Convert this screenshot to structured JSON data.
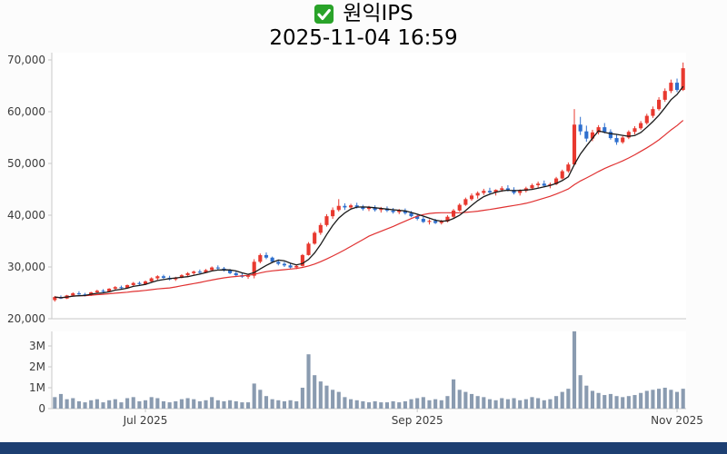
{
  "header": {
    "title": "원익IPS",
    "datetime": "2025-11-04 16:59"
  },
  "colors": {
    "up": "#e8392f",
    "down": "#2e6fce",
    "ma_fast": "#1a1a1a",
    "ma_slow": "#e03131",
    "volume": "#8a9bb0",
    "checkbox": "#29a329",
    "bottom_bar": "#1d3f72",
    "axis": "#c9c9c9",
    "label": "#3c3c3c"
  },
  "chart_data": {
    "type": "candlestick",
    "title": "원익IPS",
    "timestamp_label": "2025-11-04 16:59",
    "legend_position": "none",
    "grid": false,
    "price_axis": {
      "ticks": [
        {
          "label": "70,000",
          "value": 70000
        },
        {
          "label": "60,000",
          "value": 60000
        },
        {
          "label": "50,000",
          "value": 50000
        },
        {
          "label": "40,000",
          "value": 40000
        },
        {
          "label": "30,000",
          "value": 30000
        },
        {
          "label": "20,000",
          "value": 20000
        }
      ],
      "ylim": [
        20000,
        72000
      ]
    },
    "volume_axis": {
      "ticks": [
        {
          "label": "3M",
          "value": 3
        },
        {
          "label": "2M",
          "value": 2
        },
        {
          "label": "1M",
          "value": 1
        },
        {
          "label": "0",
          "value": 0
        }
      ],
      "unit": "millions of shares",
      "ylim": [
        0,
        3.8
      ]
    },
    "x_ticks": [
      {
        "label": "Jul 2025",
        "index": 15
      },
      {
        "label": "Sep 2025",
        "index": 60
      },
      {
        "label": "Nov 2025",
        "index": 103
      }
    ],
    "ma_windows": {
      "fast": 5,
      "slow": 20
    },
    "candle_format": [
      "open",
      "high",
      "low",
      "close",
      "volume_millions"
    ],
    "candles": [
      [
        23600,
        24400,
        23300,
        24200,
        0.55
      ],
      [
        24200,
        24500,
        23800,
        23900,
        0.7
      ],
      [
        23900,
        24600,
        23800,
        24500,
        0.45
      ],
      [
        24500,
        25100,
        24300,
        24900,
        0.5
      ],
      [
        24900,
        25300,
        24600,
        24700,
        0.35
      ],
      [
        24700,
        25000,
        24300,
        24500,
        0.3
      ],
      [
        24500,
        25200,
        24400,
        25100,
        0.4
      ],
      [
        25100,
        25600,
        24900,
        25400,
        0.45
      ],
      [
        25400,
        25700,
        25000,
        25200,
        0.3
      ],
      [
        25200,
        25900,
        25100,
        25800,
        0.4
      ],
      [
        25800,
        26300,
        25600,
        26100,
        0.45
      ],
      [
        26100,
        26400,
        25700,
        25900,
        0.3
      ],
      [
        25900,
        26600,
        25800,
        26500,
        0.5
      ],
      [
        26500,
        27100,
        26300,
        26900,
        0.55
      ],
      [
        26900,
        27200,
        26500,
        26700,
        0.35
      ],
      [
        26700,
        27400,
        26500,
        27200,
        0.4
      ],
      [
        27200,
        28000,
        27100,
        27800,
        0.55
      ],
      [
        27800,
        28400,
        27500,
        28200,
        0.5
      ],
      [
        28200,
        28500,
        27700,
        27900,
        0.35
      ],
      [
        27900,
        28300,
        27400,
        27600,
        0.3
      ],
      [
        27600,
        28100,
        27300,
        27900,
        0.35
      ],
      [
        27900,
        28600,
        27800,
        28400,
        0.45
      ],
      [
        28400,
        29000,
        28200,
        28800,
        0.5
      ],
      [
        28800,
        29300,
        28500,
        29100,
        0.45
      ],
      [
        29100,
        29500,
        28700,
        28900,
        0.35
      ],
      [
        28900,
        29600,
        28800,
        29400,
        0.4
      ],
      [
        29400,
        30100,
        29300,
        29900,
        0.55
      ],
      [
        29900,
        30300,
        29500,
        29700,
        0.4
      ],
      [
        29700,
        30000,
        29100,
        29300,
        0.35
      ],
      [
        29300,
        29600,
        28600,
        28800,
        0.4
      ],
      [
        28800,
        29100,
        28200,
        28400,
        0.35
      ],
      [
        28400,
        28800,
        27900,
        28100,
        0.3
      ],
      [
        28100,
        28500,
        27700,
        28300,
        0.3
      ],
      [
        28300,
        31500,
        27800,
        31000,
        1.2
      ],
      [
        31000,
        32600,
        30700,
        32300,
        0.9
      ],
      [
        32300,
        32800,
        31500,
        31800,
        0.6
      ],
      [
        31800,
        32000,
        30800,
        31000,
        0.45
      ],
      [
        31000,
        31400,
        30300,
        30600,
        0.4
      ],
      [
        30600,
        31000,
        30000,
        30300,
        0.35
      ],
      [
        30300,
        30700,
        29700,
        29900,
        0.4
      ],
      [
        29900,
        30400,
        29600,
        30200,
        0.35
      ],
      [
        30200,
        32500,
        30100,
        32300,
        1.0
      ],
      [
        32300,
        34800,
        32200,
        34500,
        2.6
      ],
      [
        34500,
        36900,
        34300,
        36600,
        1.6
      ],
      [
        36600,
        38500,
        36200,
        38100,
        1.3
      ],
      [
        38100,
        40200,
        37800,
        39800,
        1.1
      ],
      [
        39800,
        41500,
        39300,
        41000,
        0.9
      ],
      [
        41000,
        43100,
        40700,
        41800,
        0.8
      ],
      [
        41800,
        42300,
        41000,
        41500,
        0.55
      ],
      [
        41500,
        42200,
        41100,
        41900,
        0.45
      ],
      [
        41900,
        42400,
        41300,
        41600,
        0.4
      ],
      [
        41600,
        42000,
        40900,
        41200,
        0.35
      ],
      [
        41200,
        41800,
        40800,
        41500,
        0.3
      ],
      [
        41500,
        41900,
        40700,
        41000,
        0.35
      ],
      [
        41000,
        41600,
        40500,
        41300,
        0.3
      ],
      [
        41300,
        41700,
        40600,
        40900,
        0.3
      ],
      [
        40900,
        41400,
        40300,
        40600,
        0.35
      ],
      [
        40600,
        41200,
        40200,
        40900,
        0.3
      ],
      [
        40900,
        41300,
        40100,
        40400,
        0.35
      ],
      [
        40400,
        40800,
        39600,
        39800,
        0.45
      ],
      [
        39800,
        40200,
        39000,
        39300,
        0.5
      ],
      [
        39300,
        39700,
        38500,
        38700,
        0.55
      ],
      [
        38700,
        39200,
        38200,
        38900,
        0.4
      ],
      [
        38900,
        39300,
        38300,
        38500,
        0.45
      ],
      [
        38500,
        39100,
        38200,
        38800,
        0.4
      ],
      [
        38800,
        40000,
        38600,
        39700,
        0.6
      ],
      [
        39700,
        41200,
        39500,
        40900,
        1.4
      ],
      [
        40900,
        42300,
        40700,
        42000,
        0.9
      ],
      [
        42000,
        43400,
        41800,
        43100,
        0.8
      ],
      [
        43100,
        44200,
        42800,
        43800,
        0.7
      ],
      [
        43800,
        44600,
        43200,
        44300,
        0.6
      ],
      [
        44300,
        45100,
        43900,
        44700,
        0.55
      ],
      [
        44700,
        45300,
        44100,
        44400,
        0.45
      ],
      [
        44400,
        45000,
        43800,
        44900,
        0.4
      ],
      [
        44900,
        45600,
        44500,
        45200,
        0.5
      ],
      [
        45200,
        45800,
        44600,
        44900,
        0.45
      ],
      [
        44900,
        45400,
        44000,
        44300,
        0.5
      ],
      [
        44300,
        45000,
        43800,
        44700,
        0.4
      ],
      [
        44700,
        45500,
        44400,
        45200,
        0.45
      ],
      [
        45200,
        46100,
        45000,
        45800,
        0.55
      ],
      [
        45800,
        46500,
        45300,
        46100,
        0.5
      ],
      [
        46100,
        46700,
        45400,
        45700,
        0.4
      ],
      [
        45700,
        46300,
        45200,
        46000,
        0.45
      ],
      [
        46000,
        47400,
        45800,
        47100,
        0.6
      ],
      [
        47100,
        48800,
        46900,
        48500,
        0.8
      ],
      [
        48500,
        50200,
        48200,
        49800,
        0.95
      ],
      [
        49800,
        60500,
        49600,
        57500,
        3.7
      ],
      [
        57500,
        59000,
        55500,
        56200,
        1.6
      ],
      [
        56200,
        57300,
        54200,
        54800,
        1.1
      ],
      [
        54800,
        56500,
        54300,
        56000,
        0.85
      ],
      [
        56000,
        57400,
        55600,
        57000,
        0.75
      ],
      [
        57000,
        57800,
        55800,
        56100,
        0.65
      ],
      [
        56100,
        56600,
        54600,
        54900,
        0.7
      ],
      [
        54900,
        55600,
        53600,
        54100,
        0.6
      ],
      [
        54100,
        55300,
        53800,
        55000,
        0.55
      ],
      [
        55000,
        56400,
        54700,
        56100,
        0.6
      ],
      [
        56100,
        57200,
        55600,
        56800,
        0.65
      ],
      [
        56800,
        58200,
        56500,
        57800,
        0.75
      ],
      [
        57800,
        59600,
        57500,
        59200,
        0.85
      ],
      [
        59200,
        61000,
        58800,
        60500,
        0.9
      ],
      [
        60500,
        62800,
        60200,
        62300,
        0.95
      ],
      [
        62300,
        64500,
        61900,
        64000,
        1.0
      ],
      [
        64000,
        66200,
        63600,
        65600,
        0.9
      ],
      [
        65600,
        66400,
        63800,
        64200,
        0.8
      ],
      [
        64200,
        69500,
        64000,
        68400,
        0.95
      ]
    ]
  }
}
